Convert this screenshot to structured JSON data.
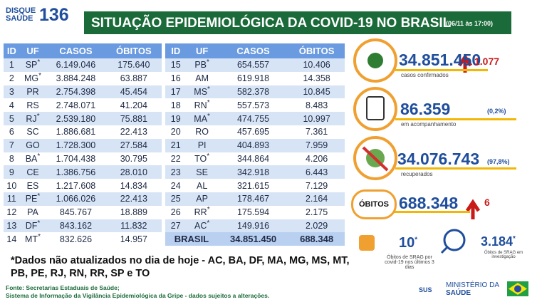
{
  "header": {
    "logo_line1": "DISQUE",
    "logo_line2": "SAÚDE",
    "logo_number": "136",
    "title": "SITUAÇÃO EPIDEMIOLÓGICA DA COVID-19 NO BRASIL",
    "timestamp": "(06/11 às 17:00)"
  },
  "table": {
    "columns": [
      "ID",
      "UF",
      "CASOS",
      "ÓBITOS"
    ],
    "left_rows": [
      {
        "id": "1",
        "uf": "SP",
        "mark": "*",
        "casos": "6.149.046",
        "obitos": "175.640"
      },
      {
        "id": "2",
        "uf": "MG",
        "mark": "*",
        "casos": "3.884.248",
        "obitos": "63.887"
      },
      {
        "id": "3",
        "uf": "PR",
        "casos": "2.754.398",
        "obitos": "45.454"
      },
      {
        "id": "4",
        "uf": "RS",
        "casos": "2.748.071",
        "obitos": "41.204"
      },
      {
        "id": "5",
        "uf": "RJ",
        "mark": "*",
        "casos": "2.539.180",
        "obitos": "75.881"
      },
      {
        "id": "6",
        "uf": "SC",
        "casos": "1.886.681",
        "obitos": "22.413"
      },
      {
        "id": "7",
        "uf": "GO",
        "casos": "1.728.300",
        "obitos": "27.584"
      },
      {
        "id": "8",
        "uf": "BA",
        "mark": "*",
        "casos": "1.704.438",
        "obitos": "30.795"
      },
      {
        "id": "9",
        "uf": "CE",
        "casos": "1.386.756",
        "obitos": "28.010"
      },
      {
        "id": "10",
        "uf": "ES",
        "casos": "1.217.608",
        "obitos": "14.834"
      },
      {
        "id": "11",
        "uf": "PE",
        "mark": "*",
        "casos": "1.066.026",
        "obitos": "22.413"
      },
      {
        "id": "12",
        "uf": "PA",
        "casos": "845.767",
        "obitos": "18.889"
      },
      {
        "id": "13",
        "uf": "DF",
        "mark": "*",
        "casos": "843.162",
        "obitos": "11.832"
      },
      {
        "id": "14",
        "uf": "MT",
        "mark": "*",
        "casos": "832.626",
        "obitos": "14.957"
      }
    ],
    "right_rows": [
      {
        "id": "15",
        "uf": "PB",
        "mark": "*",
        "casos": "654.557",
        "obitos": "10.406"
      },
      {
        "id": "16",
        "uf": "AM",
        "casos": "619.918",
        "obitos": "14.358"
      },
      {
        "id": "17",
        "uf": "MS",
        "mark": "*",
        "casos": "582.378",
        "obitos": "10.845"
      },
      {
        "id": "18",
        "uf": "RN",
        "mark": "*",
        "casos": "557.573",
        "obitos": "8.483"
      },
      {
        "id": "19",
        "uf": "MA",
        "mark": "*",
        "casos": "474.755",
        "obitos": "10.997"
      },
      {
        "id": "20",
        "uf": "RO",
        "casos": "457.695",
        "obitos": "7.361"
      },
      {
        "id": "21",
        "uf": "PI",
        "casos": "404.893",
        "obitos": "7.959"
      },
      {
        "id": "22",
        "uf": "TO",
        "mark": "*",
        "casos": "344.864",
        "obitos": "4.206"
      },
      {
        "id": "23",
        "uf": "SE",
        "casos": "342.918",
        "obitos": "6.443"
      },
      {
        "id": "24",
        "uf": "AL",
        "casos": "321.615",
        "obitos": "7.129"
      },
      {
        "id": "25",
        "uf": "AP",
        "casos": "178.467",
        "obitos": "2.164"
      },
      {
        "id": "26",
        "uf": "RR",
        "mark": "*",
        "casos": "175.594",
        "obitos": "2.175"
      },
      {
        "id": "27",
        "uf": "AC",
        "mark": "*",
        "casos": "149.916",
        "obitos": "2.029"
      }
    ],
    "total": {
      "label": "BRASIL",
      "casos": "34.851.450",
      "obitos": "688.348"
    }
  },
  "note": "*Dados não atualizados no dia de hoje - AC, BA, DF, MA, MG, MS, MT, PB, PE, RJ, RN, RR, SP e TO",
  "stats": {
    "confirmed": {
      "value": "34.851.450",
      "delta": "1.077",
      "label": "casos confirmados"
    },
    "monitoring": {
      "value": "86.359",
      "percent": "(0,2%)",
      "label": "em acompanhamento"
    },
    "recovered": {
      "value": "34.076.743",
      "percent": "(97,8%)",
      "label": "recuperados"
    },
    "deaths": {
      "label": "ÓBITOS",
      "value": "688.348",
      "delta": "6"
    },
    "srag": {
      "value": "10",
      "mark": "*",
      "label": "Óbitos de SRAG por covid-19 nos últimos 3 dias"
    },
    "investigation": {
      "value": "3.184",
      "mark": "*",
      "label": "Óbitos de SRAG em investigação"
    }
  },
  "footer": {
    "source1": "Fonte: Secretarias Estaduais de Saúde;",
    "source2": "Sistema de Informação da Vigilância Epidemiológica da Gripe - dados sujeitos a alterações.",
    "sus": "SUS",
    "ministry1": "MINISTÉRIO DA",
    "ministry2": "SAÚDE"
  }
}
